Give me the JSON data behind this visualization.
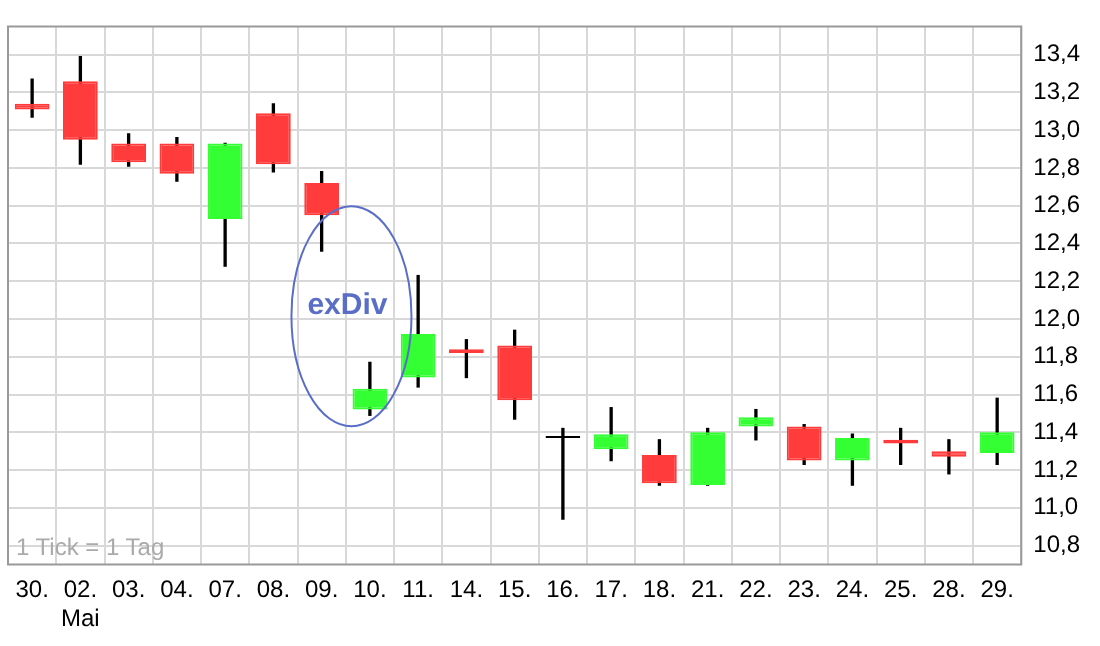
{
  "chart_data": {
    "type": "candlestick",
    "categories": [
      "30.",
      "02.\nMai",
      "03.",
      "04.",
      "07.",
      "08.",
      "09.",
      "10.",
      "11.",
      "14.",
      "15.",
      "16.",
      "17.",
      "18.",
      "21.",
      "22.",
      "23.",
      "24.",
      "25.",
      "28.",
      "29."
    ],
    "ohlc": [
      [
        13.14,
        13.27,
        13.07,
        13.11
      ],
      [
        13.26,
        13.39,
        12.82,
        12.95
      ],
      [
        12.93,
        12.98,
        12.81,
        12.83
      ],
      [
        12.93,
        12.96,
        12.73,
        12.77
      ],
      [
        12.53,
        12.93,
        12.28,
        12.93
      ],
      [
        13.09,
        13.14,
        12.78,
        12.82
      ],
      [
        12.72,
        12.78,
        12.36,
        12.55
      ],
      [
        11.52,
        11.77,
        11.49,
        11.63
      ],
      [
        11.69,
        12.23,
        11.64,
        11.92
      ],
      [
        11.84,
        11.89,
        11.69,
        11.82
      ],
      [
        11.86,
        11.94,
        11.47,
        11.57
      ],
      [
        11.37,
        11.42,
        10.94,
        11.37
      ],
      [
        11.31,
        11.53,
        11.25,
        11.39
      ],
      [
        11.28,
        11.36,
        11.12,
        11.13
      ],
      [
        11.12,
        11.42,
        11.12,
        11.4
      ],
      [
        11.43,
        11.52,
        11.36,
        11.48
      ],
      [
        11.43,
        11.44,
        11.23,
        11.25
      ],
      [
        11.25,
        11.39,
        11.12,
        11.37
      ],
      [
        11.36,
        11.42,
        11.23,
        11.34
      ],
      [
        11.3,
        11.36,
        11.18,
        11.27
      ],
      [
        11.29,
        11.58,
        11.23,
        11.4
      ]
    ],
    "colors": [
      "#ff3b3b",
      "#ff3b3b",
      "#ff3b3b",
      "#ff3b3b",
      "#33ff33",
      "#ff3b3b",
      "#ff3b3b",
      "#33ff33",
      "#33ff33",
      "#ff3b3b",
      "#ff3b3b",
      "#000000",
      "#33ff33",
      "#ff3b3b",
      "#33ff33",
      "#33ff33",
      "#ff3b3b",
      "#33ff33",
      "#ff3b3b",
      "#ff3b3b",
      "#33ff33"
    ],
    "ylim": [
      10.7,
      13.55
    ],
    "yticks": [
      {
        "value": 10.8,
        "label": "10,8"
      },
      {
        "value": 11.0,
        "label": "11,0"
      },
      {
        "value": 11.2,
        "label": "11,2"
      },
      {
        "value": 11.4,
        "label": "11,4"
      },
      {
        "value": 11.6,
        "label": "11,6"
      },
      {
        "value": 11.8,
        "label": "11,8"
      },
      {
        "value": 12.0,
        "label": "12,0"
      },
      {
        "value": 12.2,
        "label": "12,2"
      },
      {
        "value": 12.4,
        "label": "12,4"
      },
      {
        "value": 12.6,
        "label": "12,6"
      },
      {
        "value": 12.8,
        "label": "12,8"
      },
      {
        "value": 13.0,
        "label": "13,0"
      },
      {
        "value": 13.2,
        "label": "13,2"
      },
      {
        "value": 13.4,
        "label": "13,4"
      }
    ],
    "grid": true,
    "annotations": [
      "exDiv",
      "1 Tick = 1 Tag"
    ]
  }
}
